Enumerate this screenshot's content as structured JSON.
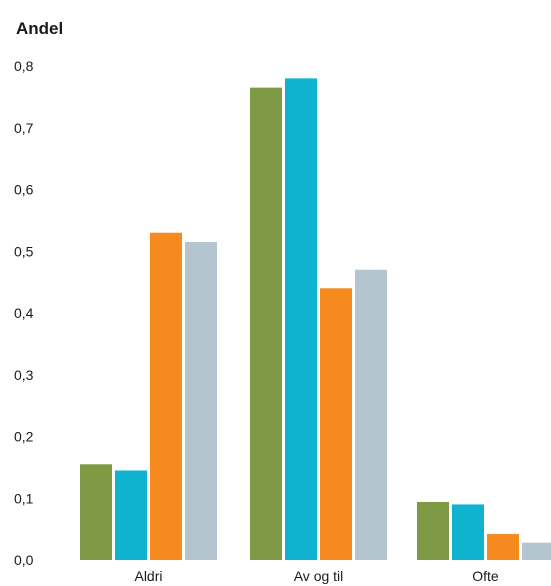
{
  "chart_data": {
    "type": "bar",
    "ylabel": "Andel",
    "xlabel": "",
    "ylim": [
      0,
      0.8
    ],
    "yticks": [
      {
        "value": 0.0,
        "label": "0,0"
      },
      {
        "value": 0.1,
        "label": "0,1"
      },
      {
        "value": 0.2,
        "label": "0,2"
      },
      {
        "value": 0.3,
        "label": "0,3"
      },
      {
        "value": 0.4,
        "label": "0,4"
      },
      {
        "value": 0.5,
        "label": "0,5"
      },
      {
        "value": 0.6,
        "label": "0,6"
      },
      {
        "value": 0.7,
        "label": "0,7"
      },
      {
        "value": 0.8,
        "label": "0,8"
      }
    ],
    "categories": [
      "Aldri",
      "Av og til",
      "Ofte"
    ],
    "series": [
      {
        "color": "#7f9a45",
        "values": [
          0.155,
          0.765,
          0.094
        ]
      },
      {
        "color": "#0fb3cf",
        "values": [
          0.145,
          0.78,
          0.09
        ]
      },
      {
        "color": "#f68a1f",
        "values": [
          0.53,
          0.44,
          0.042
        ]
      },
      {
        "color": "#b4c5cf",
        "values": [
          0.515,
          0.47,
          0.028
        ]
      }
    ],
    "grid": false,
    "legend": "none"
  }
}
